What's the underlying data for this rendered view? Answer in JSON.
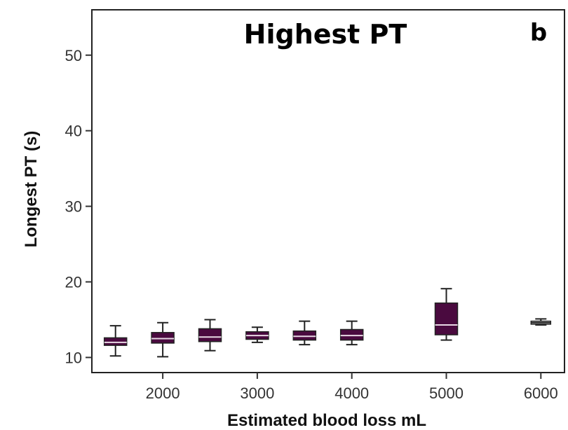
{
  "chart_data": {
    "type": "box",
    "title": "Highest PT",
    "panel_label": "b",
    "xlabel": "Estimated blood loss mL",
    "ylabel": "Longest PT (s)",
    "ylim": [
      8,
      56
    ],
    "xlim": [
      1250,
      6250
    ],
    "yticks": [
      10,
      20,
      30,
      40,
      50
    ],
    "xticks": [
      2000,
      3000,
      4000,
      5000,
      6000
    ],
    "ytick_labels": [
      "10",
      "20",
      "30",
      "40",
      "50"
    ],
    "xtick_labels": [
      "2000",
      "3000",
      "4000",
      "5000",
      "6000"
    ],
    "grid": false,
    "box_color": "#4a0a3f",
    "median_color": "#e8d8e4",
    "boxes": [
      {
        "x": 1500,
        "whisker_low": 10.2,
        "q1": 11.6,
        "median": 12.0,
        "q3": 12.6,
        "whisker_high": 14.2
      },
      {
        "x": 2000,
        "whisker_low": 10.1,
        "q1": 11.9,
        "median": 12.5,
        "q3": 13.3,
        "whisker_high": 14.6
      },
      {
        "x": 2500,
        "whisker_low": 10.9,
        "q1": 12.1,
        "median": 12.7,
        "q3": 13.8,
        "whisker_high": 15.0
      },
      {
        "x": 3000,
        "whisker_low": 12.0,
        "q1": 12.4,
        "median": 12.9,
        "q3": 13.4,
        "whisker_high": 14.0
      },
      {
        "x": 3500,
        "whisker_low": 11.7,
        "q1": 12.3,
        "median": 12.8,
        "q3": 13.5,
        "whisker_high": 14.8
      },
      {
        "x": 4000,
        "whisker_low": 11.7,
        "q1": 12.3,
        "median": 12.9,
        "q3": 13.7,
        "whisker_high": 14.8
      },
      {
        "x": 5000,
        "whisker_low": 12.3,
        "q1": 13.0,
        "median": 14.3,
        "q3": 17.2,
        "whisker_high": 19.1
      },
      {
        "x": 6000,
        "whisker_low": 14.3,
        "q1": 14.4,
        "median": 14.6,
        "q3": 14.8,
        "whisker_high": 15.1
      }
    ]
  }
}
